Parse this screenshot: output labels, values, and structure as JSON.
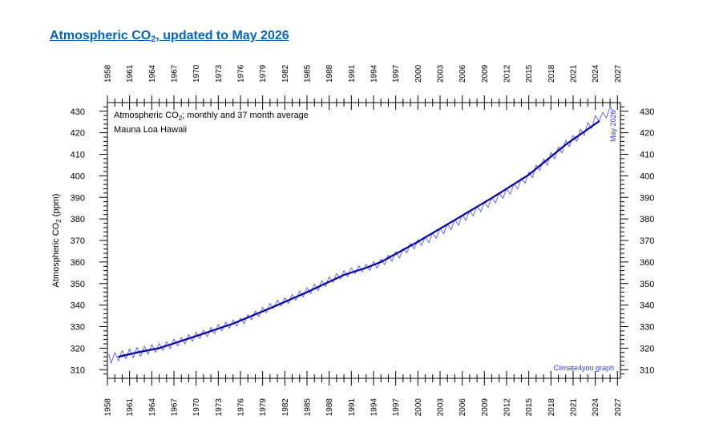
{
  "page": {
    "title_pre": "Atmospheric CO",
    "title_sub": "2",
    "title_post": ", updated to May 2026"
  },
  "chart_data": {
    "type": "line",
    "inner_label_pre": "Atmospheric CO",
    "inner_label_sub": "2",
    "inner_label_post": "; monthly and 37 month average",
    "subtitle": "Mauna Loa Hawaii",
    "ylabel_pre": "Atmospheric CO",
    "ylabel_sub": "2",
    "ylabel_post": " (ppm)",
    "end_annotation": "May 2026",
    "credit": "Climate4you graph",
    "xlim": [
      1958,
      2027.4
    ],
    "ylim": [
      306,
      434
    ],
    "x_tick_labels": [
      "1958",
      "1961",
      "1964",
      "1967",
      "1970",
      "1973",
      "1976",
      "1979",
      "1982",
      "1985",
      "1988",
      "1991",
      "1994",
      "1997",
      "2000",
      "2003",
      "2006",
      "2009",
      "2012",
      "2015",
      "2018",
      "2021",
      "2024",
      "2027"
    ],
    "y_tick_labels": [
      "310",
      "320",
      "330",
      "340",
      "350",
      "360",
      "370",
      "380",
      "390",
      "400",
      "410",
      "420",
      "430"
    ],
    "colors": {
      "monthly": "#5555ff",
      "average": "#0000aa",
      "annotation": "#3333ff",
      "title": "#0563c1"
    },
    "series": [
      {
        "style": "thin-line",
        "note": "monthly values",
        "x": [
          1958.2,
          1958.5,
          1959.0,
          1959.5,
          1960.0,
          1960.5,
          1961.0,
          1961.5,
          1962.0,
          1962.5,
          1963.0,
          1963.5,
          1964.0,
          1964.5,
          1965.0,
          1965.5,
          1966.0,
          1966.5,
          1967.0,
          1967.5,
          1968.0,
          1968.5,
          1969.0,
          1969.5,
          1970.0,
          1970.5,
          1971.0,
          1971.5,
          1972.0,
          1972.5,
          1973.0,
          1973.5,
          1974.0,
          1974.5,
          1975.0,
          1975.5,
          1976.0,
          1976.5,
          1977.0,
          1977.5,
          1978.0,
          1978.5,
          1979.0,
          1979.5,
          1980.0,
          1980.5,
          1981.0,
          1981.5,
          1982.0,
          1982.5,
          1983.0,
          1983.5,
          1984.0,
          1984.5,
          1985.0,
          1985.5,
          1986.0,
          1986.5,
          1987.0,
          1987.5,
          1988.0,
          1988.5,
          1989.0,
          1989.5,
          1990.0,
          1990.5,
          1991.0,
          1991.5,
          1992.0,
          1992.5,
          1993.0,
          1993.5,
          1994.0,
          1994.5,
          1995.0,
          1995.5,
          1996.0,
          1996.5,
          1997.0,
          1997.5,
          1998.0,
          1998.5,
          1999.0,
          1999.5,
          2000.0,
          2000.5,
          2001.0,
          2001.5,
          2002.0,
          2002.5,
          2003.0,
          2003.5,
          2004.0,
          2004.5,
          2005.0,
          2005.5,
          2006.0,
          2006.5,
          2007.0,
          2007.5,
          2008.0,
          2008.5,
          2009.0,
          2009.5,
          2010.0,
          2010.5,
          2011.0,
          2011.5,
          2012.0,
          2012.5,
          2013.0,
          2013.5,
          2014.0,
          2014.5,
          2015.0,
          2015.5,
          2016.0,
          2016.5,
          2017.0,
          2017.5,
          2018.0,
          2018.5,
          2019.0,
          2019.5,
          2020.0,
          2020.5,
          2021.0,
          2021.5,
          2022.0,
          2022.5,
          2023.0,
          2023.5,
          2024.0,
          2024.5,
          2025.0,
          2025.5,
          2026.0,
          2026.4
        ],
        "y": [
          317.2,
          313.0,
          318.0,
          314.0,
          318.9,
          314.9,
          319.7,
          315.5,
          320.4,
          316.2,
          321.0,
          317.1,
          321.7,
          318.0,
          322.2,
          318.8,
          323.0,
          319.8,
          324.3,
          320.9,
          325.0,
          322.0,
          326.4,
          323.1,
          327.5,
          324.4,
          328.4,
          325.3,
          329.6,
          326.6,
          331.0,
          328.0,
          332.1,
          329.2,
          333.1,
          330.2,
          334.0,
          331.3,
          335.6,
          333.1,
          337.3,
          334.6,
          339.0,
          336.4,
          340.8,
          338.5,
          342.3,
          339.6,
          343.4,
          340.7,
          345.0,
          342.2,
          346.6,
          343.7,
          348.1,
          345.3,
          349.8,
          346.7,
          351.3,
          348.6,
          353.1,
          350.5,
          354.7,
          352.1,
          356.0,
          353.2,
          357.3,
          354.5,
          358.3,
          355.3,
          359.0,
          356.0,
          360.2,
          357.1,
          361.4,
          358.7,
          363.2,
          360.3,
          364.8,
          361.8,
          366.3,
          364.2,
          368.7,
          366.1,
          370.3,
          367.6,
          371.7,
          369.0,
          373.5,
          371.0,
          375.7,
          373.0,
          377.8,
          375.0,
          379.8,
          377.0,
          382.0,
          379.3,
          384.0,
          381.4,
          386.0,
          383.3,
          387.9,
          385.3,
          390.0,
          387.4,
          392.2,
          389.5,
          394.0,
          391.4,
          396.4,
          393.8,
          399.0,
          396.5,
          401.8,
          399.2,
          405.0,
          402.5,
          407.9,
          404.9,
          410.9,
          407.8,
          413.5,
          410.6,
          416.6,
          413.5,
          418.8,
          415.9,
          421.7,
          418.8,
          424.8,
          421.9,
          427.9,
          425.4,
          429.5,
          426.9,
          432.0,
          430.2
        ]
      },
      {
        "style": "thick-line",
        "note": "37 month average",
        "x": [
          1959.5,
          1962.0,
          1965.0,
          1970.0,
          1975.0,
          1980.0,
          1985.0,
          1990.0,
          1993.0,
          1995.0,
          2000.0,
          2005.0,
          2010.0,
          2015.0,
          2020.0,
          2024.5
        ],
        "y": [
          316.0,
          318.0,
          320.0,
          325.6,
          331.4,
          338.5,
          346.0,
          354.0,
          357.3,
          360.0,
          369.4,
          379.5,
          389.7,
          400.5,
          414.5,
          425.3
        ]
      }
    ]
  }
}
